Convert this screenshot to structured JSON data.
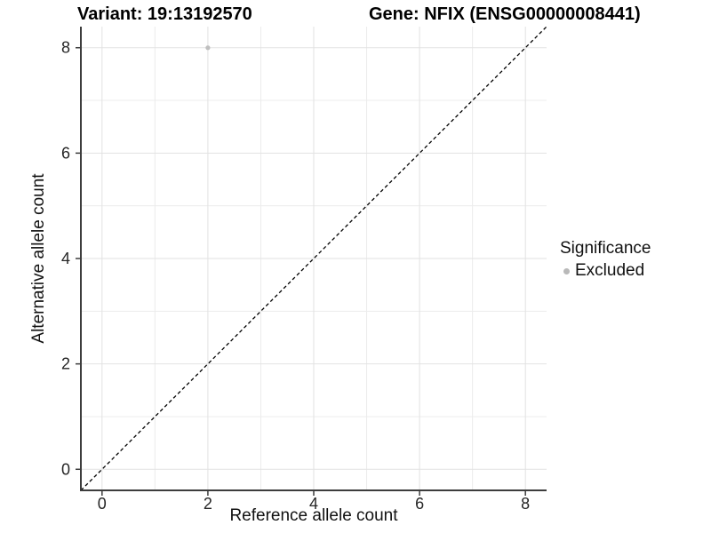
{
  "chart_data": {
    "type": "scatter",
    "title": {
      "left": "Variant: 19:13192570",
      "right": "Gene: NFIX (ENSG00000008441)"
    },
    "xlabel": "Reference allele count",
    "ylabel": "Alternative allele count",
    "xlim": [
      -0.4,
      8.4
    ],
    "ylim": [
      -0.4,
      8.4
    ],
    "xticks": [
      0,
      2,
      4,
      6,
      8
    ],
    "yticks": [
      0,
      2,
      4,
      6,
      8
    ],
    "grid": {
      "major": [
        0,
        2,
        4,
        6,
        8
      ],
      "minor": [
        1,
        3,
        5,
        7
      ]
    },
    "points": [
      {
        "x": 2,
        "y": 8,
        "series": "Excluded"
      }
    ],
    "reference_line": {
      "slope": 1,
      "intercept": 0,
      "style": "dashed"
    },
    "legend": {
      "title": "Significance",
      "position": "right",
      "items": [
        {
          "label": "Excluded",
          "color": "#b9b9b9"
        }
      ]
    },
    "colors": {
      "background": "#ffffff",
      "grid_major": "#e2e2e2",
      "grid_minor": "#ececec",
      "axis": "#3d3d3d",
      "tick_text": "#262626",
      "point": "#bfbfbf",
      "dashed_line": "#000000"
    }
  }
}
